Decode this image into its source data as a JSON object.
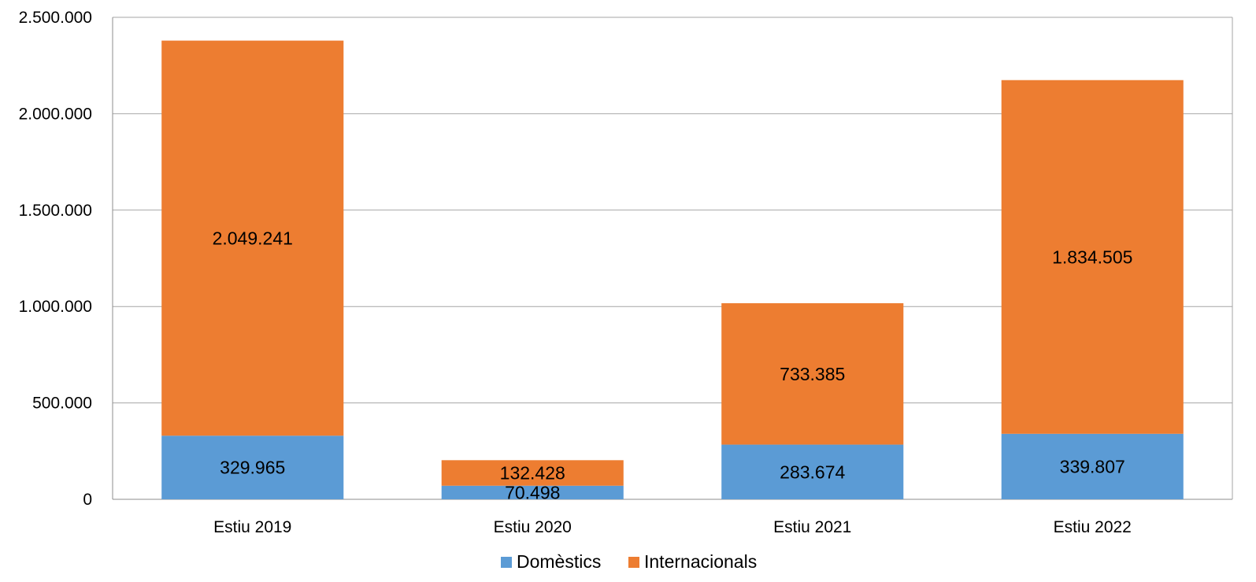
{
  "chart_data": {
    "type": "bar",
    "stacked": true,
    "categories": [
      "Estiu 2019",
      "Estiu 2020",
      "Estiu 2021",
      "Estiu 2022"
    ],
    "series": [
      {
        "name": "Domèstics",
        "color": "#5b9bd5",
        "values": [
          329965,
          70498,
          283674,
          339807
        ],
        "labels": [
          "329.965",
          "70.498",
          "283.674",
          "339.807"
        ]
      },
      {
        "name": "Internacionals",
        "color": "#ed7d31",
        "values": [
          2049241,
          132428,
          733385,
          1834505
        ],
        "labels": [
          "2.049.241",
          "132.428",
          "733.385",
          "1.834.505"
        ]
      }
    ],
    "ylim": [
      0,
      2500000
    ],
    "yticks": [
      0,
      500000,
      1000000,
      1500000,
      2000000,
      2500000
    ],
    "ytick_labels": [
      "0",
      "500.000",
      "1.000.000",
      "1.500.000",
      "2.000.000",
      "2.500.000"
    ],
    "grid": true,
    "legend_position": "bottom-center"
  }
}
